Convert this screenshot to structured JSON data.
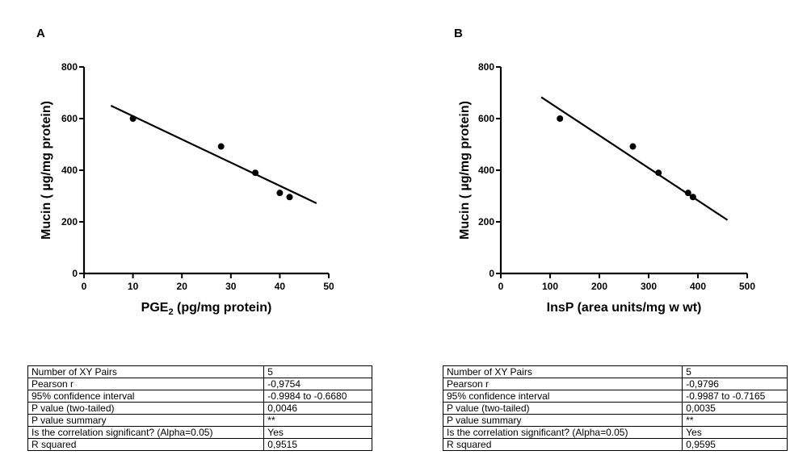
{
  "chart_data": [
    {
      "type": "scatter",
      "panel": "A",
      "title": "",
      "xlabel": "PGE",
      "xlabel_sub": "2",
      "xlabel_suffix": " (pg/mg protein)",
      "ylabel": "Mucin ( µg/mg protein)",
      "xlim": [
        0,
        50
      ],
      "ylim": [
        0,
        800
      ],
      "xticks": [
        0,
        10,
        20,
        30,
        40,
        50
      ],
      "yticks": [
        0,
        200,
        400,
        600,
        800
      ],
      "points": [
        {
          "x": 10,
          "y": 600
        },
        {
          "x": 28,
          "y": 492
        },
        {
          "x": 35,
          "y": 390
        },
        {
          "x": 40,
          "y": 312
        },
        {
          "x": 42,
          "y": 296
        }
      ],
      "fit_line": [
        {
          "x": 5.5,
          "y": 650
        },
        {
          "x": 47.5,
          "y": 272
        }
      ],
      "stats": [
        {
          "label": "Number of XY Pairs",
          "value": "5"
        },
        {
          "label": "Pearson r",
          "value": "-0,9754"
        },
        {
          "label": "95% confidence interval",
          "value": "-0.9984 to -0.6680"
        },
        {
          "label": "P value (two-tailed)",
          "value": "0,0046"
        },
        {
          "label": "P value summary",
          "value": "**"
        },
        {
          "label": "Is the correlation significant? (Alpha=0.05)",
          "value": "Yes"
        },
        {
          "label": "R squared",
          "value": "0,9515"
        }
      ]
    },
    {
      "type": "scatter",
      "panel": "B",
      "title": "",
      "xlabel": "InsP (area units/mg w wt)",
      "xlabel_sub": "",
      "xlabel_suffix": "",
      "ylabel": "Mucin ( µg/mg protein)",
      "xlim": [
        0,
        500
      ],
      "ylim": [
        0,
        800
      ],
      "xticks": [
        0,
        100,
        200,
        300,
        400,
        500
      ],
      "yticks": [
        0,
        200,
        400,
        600,
        800
      ],
      "points": [
        {
          "x": 120,
          "y": 600
        },
        {
          "x": 268,
          "y": 492
        },
        {
          "x": 320,
          "y": 390
        },
        {
          "x": 380,
          "y": 312
        },
        {
          "x": 390,
          "y": 296
        }
      ],
      "fit_line": [
        {
          "x": 82,
          "y": 683
        },
        {
          "x": 460,
          "y": 207
        }
      ],
      "stats": [
        {
          "label": "Number of XY Pairs",
          "value": "5"
        },
        {
          "label": "Pearson r",
          "value": "-0,9796"
        },
        {
          "label": "95% confidence interval",
          "value": "-0.9987 to -0.7165"
        },
        {
          "label": "P value (two-tailed)",
          "value": "0,0035"
        },
        {
          "label": "P value summary",
          "value": "**"
        },
        {
          "label": "Is the correlation significant? (Alpha=0.05)",
          "value": "Yes"
        },
        {
          "label": "R squared",
          "value": "0,9595"
        }
      ]
    }
  ]
}
